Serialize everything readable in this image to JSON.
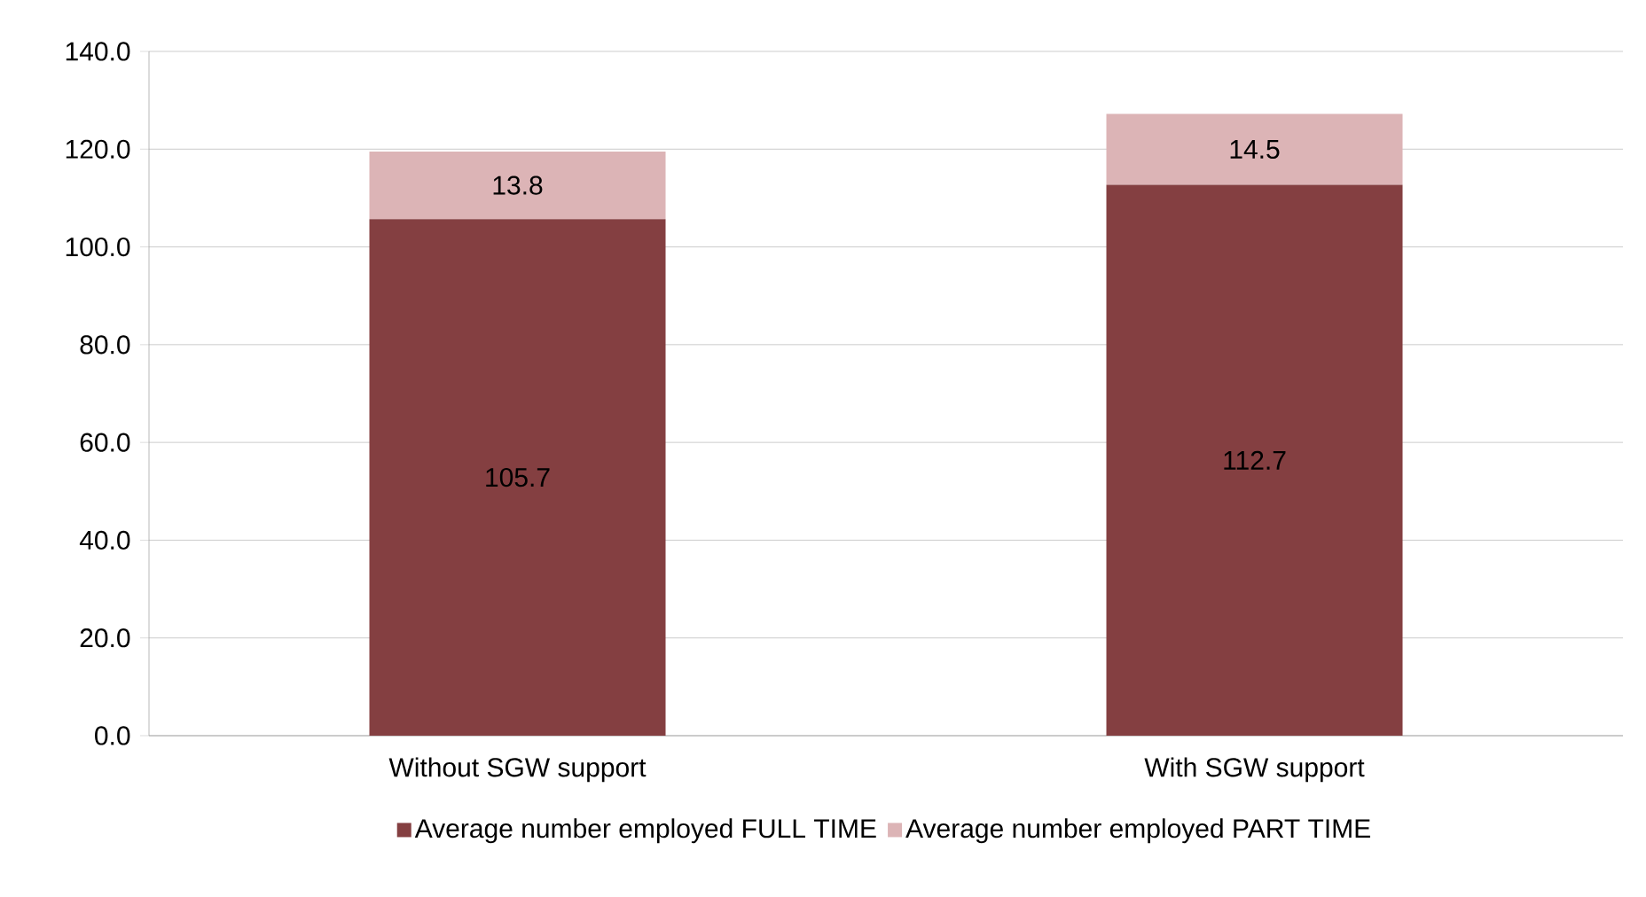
{
  "chart_data": {
    "type": "bar",
    "stacked": true,
    "categories": [
      "Without SGW support",
      "With SGW support"
    ],
    "series": [
      {
        "name": "Average number employed FULL TIME",
        "color": "#843f41",
        "values": [
          105.7,
          112.7
        ]
      },
      {
        "name": "Average number employed PART TIME",
        "color": "#dcb4b6",
        "values": [
          13.8,
          14.5
        ]
      }
    ],
    "ylim": [
      0,
      140
    ],
    "yticks": [
      {
        "value": 0,
        "label": "0.0"
      },
      {
        "value": 20,
        "label": "20.0"
      },
      {
        "value": 40,
        "label": "40.0"
      },
      {
        "value": 60,
        "label": "60.0"
      },
      {
        "value": 80,
        "label": "80.0"
      },
      {
        "value": 100,
        "label": "100.0"
      },
      {
        "value": 120,
        "label": "120.0"
      },
      {
        "value": 140,
        "label": "140.0"
      }
    ],
    "grid": "y",
    "legend": "bottom",
    "data_labels": true
  }
}
